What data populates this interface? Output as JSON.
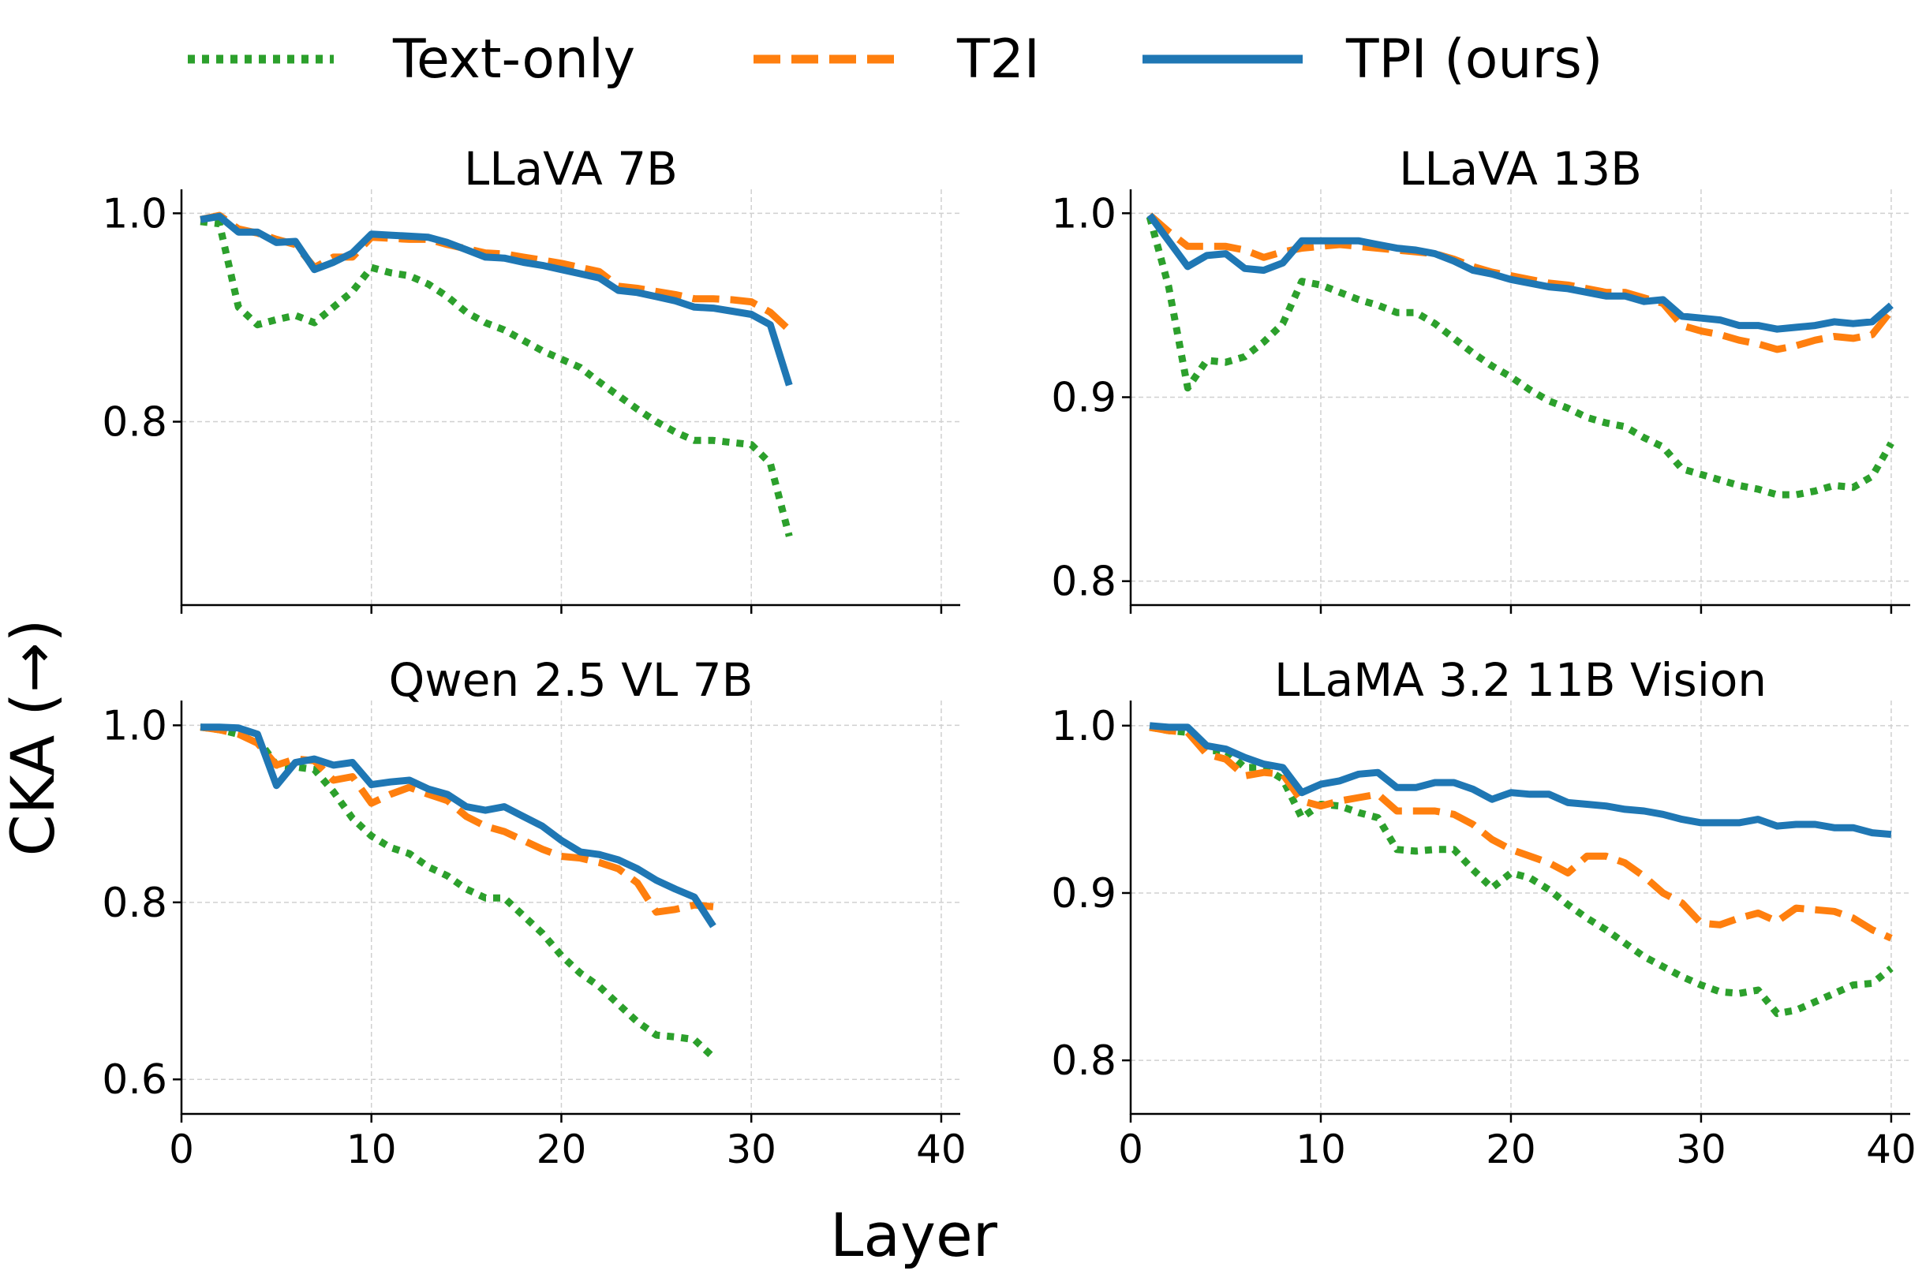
{
  "chart_data": {
    "type": "line",
    "ylabel": "CKA (→)",
    "xlabel": "Layer",
    "legend": {
      "placement": "top-center",
      "entries": [
        {
          "name": "Text-only",
          "color": "#2ca02c",
          "style": "dotted"
        },
        {
          "name": "T2I",
          "color": "#ff7f0e",
          "style": "dashed"
        },
        {
          "name": "TPI (ours)",
          "color": "#1f77b4",
          "style": "solid"
        }
      ]
    },
    "grid": true,
    "panels": [
      {
        "title": "LLaVA 7B",
        "xlim": [
          0,
          41
        ],
        "ylim": [
          0.624,
          1.023
        ],
        "xticks": [
          0,
          10,
          20,
          30,
          40
        ],
        "show_xtick_labels": false,
        "yticks": [
          0.8,
          1.0
        ],
        "ytick_labels": [
          "0.8",
          "1.0"
        ],
        "x_start": 1,
        "series": [
          {
            "name": "Text-only",
            "values": [
              0.992,
              0.99,
              0.91,
              0.893,
              0.898,
              0.902,
              0.895,
              0.91,
              0.925,
              0.948,
              0.943,
              0.94,
              0.932,
              0.92,
              0.905,
              0.895,
              0.888,
              0.878,
              0.868,
              0.86,
              0.852,
              0.838,
              0.825,
              0.812,
              0.8,
              0.79,
              0.782,
              0.782,
              0.78,
              0.778,
              0.76,
              0.69
            ]
          },
          {
            "name": "T2I",
            "values": [
              0.994,
              0.998,
              0.985,
              0.981,
              0.975,
              0.97,
              0.948,
              0.958,
              0.958,
              0.977,
              0.976,
              0.975,
              0.975,
              0.97,
              0.966,
              0.962,
              0.961,
              0.958,
              0.955,
              0.952,
              0.948,
              0.944,
              0.93,
              0.928,
              0.925,
              0.922,
              0.918,
              0.918,
              0.917,
              0.915,
              0.905,
              0.888
            ]
          },
          {
            "name": "TPI (ours)",
            "values": [
              0.994,
              0.997,
              0.982,
              0.982,
              0.972,
              0.973,
              0.946,
              0.953,
              0.962,
              0.98,
              0.979,
              0.978,
              0.977,
              0.972,
              0.965,
              0.958,
              0.957,
              0.953,
              0.95,
              0.946,
              0.942,
              0.938,
              0.926,
              0.924,
              0.92,
              0.916,
              0.91,
              0.909,
              0.906,
              0.903,
              0.893,
              0.835
            ]
          }
        ]
      },
      {
        "title": "LLaVA 13B",
        "xlim": [
          0,
          41
        ],
        "ylim": [
          0.787,
          1.013
        ],
        "xticks": [
          0,
          10,
          20,
          30,
          40
        ],
        "show_xtick_labels": false,
        "yticks": [
          0.8,
          0.9,
          1.0
        ],
        "ytick_labels": [
          "0.8",
          "0.9",
          "1.0"
        ],
        "x_start": 1,
        "series": [
          {
            "name": "Text-only",
            "values": [
              0.998,
              0.96,
              0.905,
              0.92,
              0.919,
              0.922,
              0.93,
              0.94,
              0.963,
              0.961,
              0.957,
              0.953,
              0.95,
              0.946,
              0.946,
              0.94,
              0.932,
              0.924,
              0.917,
              0.911,
              0.904,
              0.898,
              0.894,
              0.889,
              0.886,
              0.884,
              0.878,
              0.873,
              0.861,
              0.858,
              0.855,
              0.852,
              0.85,
              0.847,
              0.847,
              0.849,
              0.852,
              0.851,
              0.857,
              0.875
            ]
          },
          {
            "name": "T2I",
            "values": [
              0.999,
              0.99,
              0.982,
              0.982,
              0.982,
              0.98,
              0.976,
              0.979,
              0.981,
              0.982,
              0.983,
              0.982,
              0.981,
              0.98,
              0.979,
              0.978,
              0.975,
              0.971,
              0.968,
              0.966,
              0.964,
              0.962,
              0.961,
              0.959,
              0.957,
              0.957,
              0.954,
              0.951,
              0.939,
              0.936,
              0.934,
              0.931,
              0.929,
              0.926,
              0.928,
              0.931,
              0.933,
              0.932,
              0.934,
              0.947
            ]
          },
          {
            "name": "TPI (ours)",
            "values": [
              0.999,
              0.985,
              0.971,
              0.977,
              0.978,
              0.97,
              0.969,
              0.973,
              0.985,
              0.985,
              0.985,
              0.985,
              0.983,
              0.981,
              0.98,
              0.978,
              0.974,
              0.969,
              0.967,
              0.964,
              0.962,
              0.96,
              0.959,
              0.957,
              0.955,
              0.955,
              0.952,
              0.953,
              0.944,
              0.943,
              0.942,
              0.939,
              0.939,
              0.937,
              0.938,
              0.939,
              0.941,
              0.94,
              0.941,
              0.95
            ]
          }
        ]
      },
      {
        "title": "Qwen 2.5 VL 7B",
        "xlim": [
          0,
          41
        ],
        "ylim": [
          0.561,
          1.028
        ],
        "xticks": [
          0,
          10,
          20,
          30,
          40
        ],
        "show_xtick_labels": true,
        "xtick_labels": [
          "0",
          "10",
          "20",
          "30",
          "40"
        ],
        "yticks": [
          0.6,
          0.8,
          1.0
        ],
        "ytick_labels": [
          "0.6",
          "0.8",
          "1.0"
        ],
        "x_start": 1,
        "series": [
          {
            "name": "Text-only",
            "values": [
              0.998,
              0.995,
              0.99,
              0.985,
              0.955,
              0.953,
              0.95,
              0.925,
              0.895,
              0.875,
              0.862,
              0.855,
              0.84,
              0.83,
              0.815,
              0.805,
              0.805,
              0.785,
              0.765,
              0.74,
              0.72,
              0.705,
              0.685,
              0.665,
              0.65,
              0.648,
              0.645,
              0.625
            ]
          },
          {
            "name": "T2I",
            "values": [
              0.998,
              0.995,
              0.99,
              0.98,
              0.955,
              0.962,
              0.96,
              0.938,
              0.942,
              0.912,
              0.922,
              0.93,
              0.922,
              0.915,
              0.897,
              0.886,
              0.88,
              0.87,
              0.86,
              0.852,
              0.85,
              0.845,
              0.838,
              0.822,
              0.789,
              0.792,
              0.797,
              0.795
            ]
          },
          {
            "name": "TPI (ours)",
            "values": [
              0.998,
              0.998,
              0.997,
              0.99,
              0.932,
              0.958,
              0.962,
              0.955,
              0.958,
              0.933,
              0.936,
              0.938,
              0.928,
              0.922,
              0.908,
              0.904,
              0.908,
              0.897,
              0.886,
              0.87,
              0.857,
              0.854,
              0.848,
              0.838,
              0.825,
              0.815,
              0.806,
              0.773
            ]
          }
        ]
      },
      {
        "title": "LLaMA 3.2 11B Vision",
        "xlim": [
          0,
          41
        ],
        "ylim": [
          0.768,
          1.015
        ],
        "xticks": [
          0,
          10,
          20,
          30,
          40
        ],
        "show_xtick_labels": true,
        "xtick_labels": [
          "0",
          "10",
          "20",
          "30",
          "40"
        ],
        "yticks": [
          0.8,
          0.9,
          1.0
        ],
        "ytick_labels": [
          "0.8",
          "0.9",
          "1.0"
        ],
        "x_start": 1,
        "series": [
          {
            "name": "Text-only",
            "values": [
              0.999,
              0.997,
              0.996,
              0.985,
              0.985,
              0.975,
              0.975,
              0.968,
              0.945,
              0.953,
              0.952,
              0.948,
              0.945,
              0.926,
              0.925,
              0.926,
              0.926,
              0.914,
              0.903,
              0.912,
              0.909,
              0.902,
              0.893,
              0.885,
              0.878,
              0.87,
              0.862,
              0.856,
              0.85,
              0.845,
              0.841,
              0.84,
              0.842,
              0.828,
              0.83,
              0.835,
              0.84,
              0.845,
              0.846,
              0.855
            ]
          },
          {
            "name": "T2I",
            "values": [
              0.999,
              0.997,
              0.996,
              0.983,
              0.98,
              0.97,
              0.972,
              0.971,
              0.955,
              0.952,
              0.955,
              0.957,
              0.959,
              0.949,
              0.949,
              0.949,
              0.947,
              0.941,
              0.932,
              0.926,
              0.922,
              0.918,
              0.912,
              0.922,
              0.922,
              0.918,
              0.91,
              0.9,
              0.894,
              0.882,
              0.881,
              0.885,
              0.888,
              0.883,
              0.891,
              0.89,
              0.889,
              0.885,
              0.878,
              0.873
            ]
          },
          {
            "name": "TPI (ours)",
            "values": [
              1.0,
              0.999,
              0.999,
              0.988,
              0.986,
              0.981,
              0.977,
              0.975,
              0.96,
              0.965,
              0.967,
              0.971,
              0.972,
              0.963,
              0.963,
              0.966,
              0.966,
              0.962,
              0.956,
              0.96,
              0.959,
              0.959,
              0.954,
              0.953,
              0.952,
              0.95,
              0.949,
              0.947,
              0.944,
              0.942,
              0.942,
              0.942,
              0.944,
              0.94,
              0.941,
              0.941,
              0.939,
              0.939,
              0.936,
              0.935
            ]
          }
        ]
      }
    ]
  }
}
